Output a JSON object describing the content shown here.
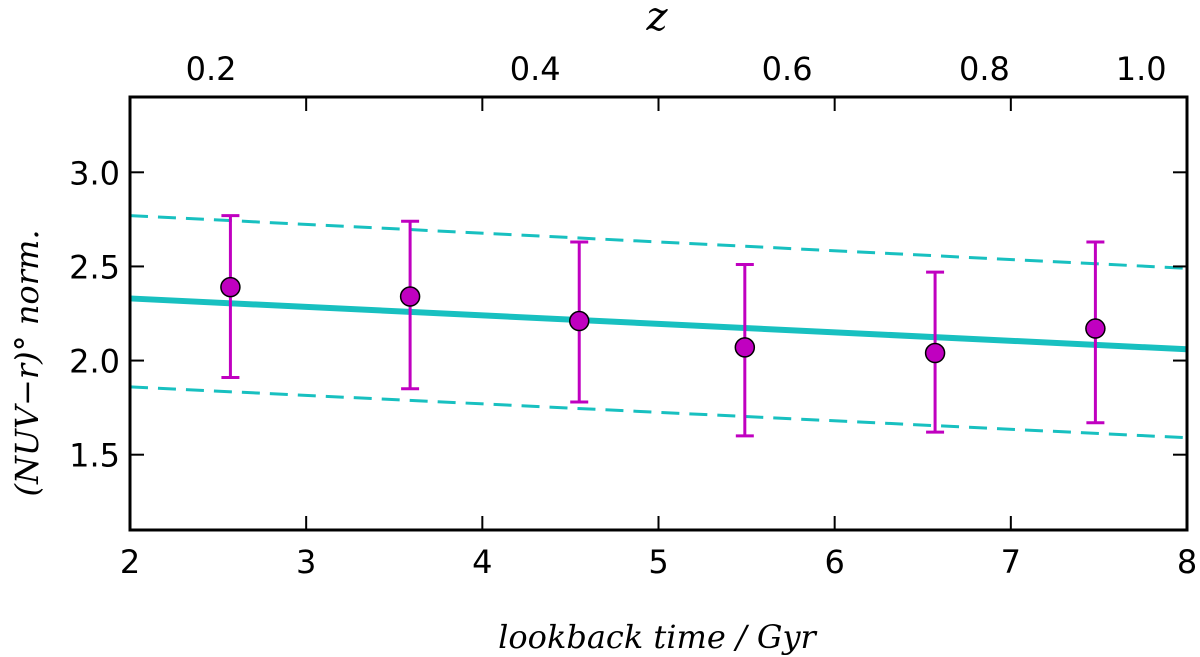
{
  "chart_data": {
    "type": "scatter",
    "xlabel": "lookback time / Gyr",
    "ylabel": "(NUV−r)° norm.",
    "top_xlabel": "z",
    "xlim": [
      2,
      8
    ],
    "ylim": [
      1.1,
      3.4
    ],
    "xticks": [
      2,
      3,
      4,
      5,
      6,
      7,
      8
    ],
    "yticks": [
      {
        "value": 1.5,
        "label": "1.5"
      },
      {
        "value": 2.0,
        "label": "2.0"
      },
      {
        "value": 2.5,
        "label": "2.5"
      },
      {
        "value": 3.0,
        "label": "3.0"
      }
    ],
    "top_ticks": [
      {
        "z": 0.2,
        "lookback": 2.46,
        "label": "0.2"
      },
      {
        "z": 0.4,
        "lookback": 4.3,
        "label": "0.4"
      },
      {
        "z": 0.6,
        "lookback": 5.73,
        "label": "0.6"
      },
      {
        "z": 0.8,
        "lookback": 6.85,
        "label": "0.8"
      },
      {
        "z": 1.0,
        "lookback": 7.74,
        "label": "1.0"
      }
    ],
    "grid": false,
    "series": [
      {
        "kind": "errorbar",
        "color": "#c000c0",
        "points": [
          {
            "x": 2.57,
            "y": 2.39,
            "ylow": 1.91,
            "yhigh": 2.77
          },
          {
            "x": 3.59,
            "y": 2.34,
            "ylow": 1.85,
            "yhigh": 2.74
          },
          {
            "x": 4.55,
            "y": 2.21,
            "ylow": 1.78,
            "yhigh": 2.63
          },
          {
            "x": 5.49,
            "y": 2.07,
            "ylow": 1.6,
            "yhigh": 2.51
          },
          {
            "x": 6.57,
            "y": 2.04,
            "ylow": 1.62,
            "yhigh": 2.47
          },
          {
            "x": 7.48,
            "y": 2.17,
            "ylow": 1.67,
            "yhigh": 2.63
          }
        ]
      },
      {
        "kind": "fit-line",
        "color": "#18c0c0",
        "style": "solid",
        "x": [
          2,
          8
        ],
        "y": [
          2.33,
          2.06
        ]
      },
      {
        "kind": "upper-bound",
        "color": "#18c0c0",
        "style": "dashed",
        "x": [
          2,
          8
        ],
        "y": [
          2.77,
          2.49
        ]
      },
      {
        "kind": "lower-bound",
        "color": "#18c0c0",
        "style": "dashed",
        "x": [
          2,
          8
        ],
        "y": [
          1.86,
          1.59
        ]
      }
    ]
  }
}
